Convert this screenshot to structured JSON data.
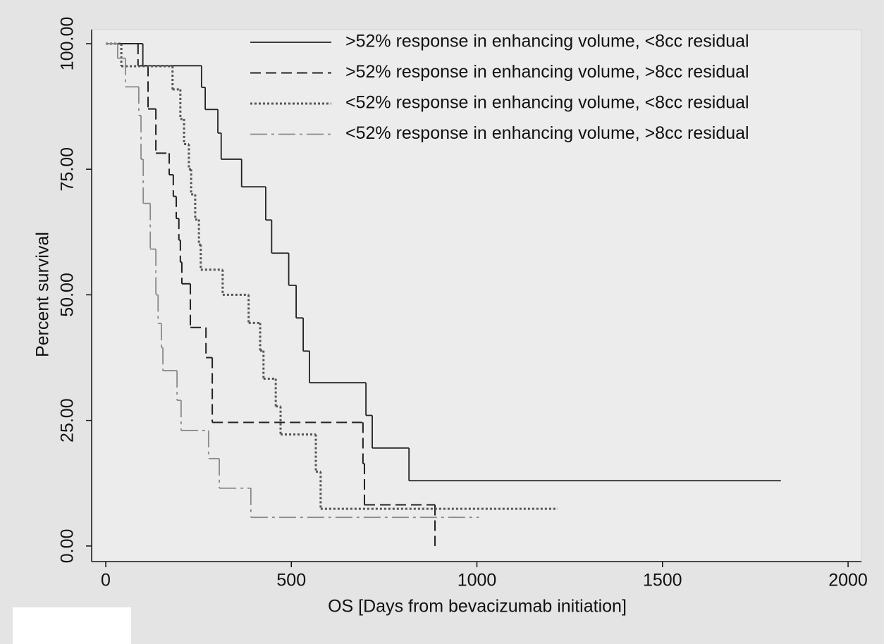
{
  "chart_data": {
    "type": "line",
    "step": "post",
    "xlabel": "OS [Days from bevacizumab initiation]",
    "ylabel": "Percent survival",
    "xlim": [
      -38,
      2036
    ],
    "xticks": [
      0,
      500,
      1000,
      1500,
      2000
    ],
    "ylim": [
      -3.1,
      102.8
    ],
    "yticks": [
      {
        "value": 0,
        "label": "0.00"
      },
      {
        "value": 25,
        "label": "25.00"
      },
      {
        "value": 50,
        "label": "50.00"
      },
      {
        "value": 75,
        "label": "75.00"
      },
      {
        "value": 100,
        "label": "100.00"
      }
    ],
    "legend": "upper right",
    "series": [
      {
        "name": ">52% response in enhancing volume, <8cc residual",
        "color": "#222222",
        "style": "solid",
        "x": [
          0,
          100,
          258,
          268,
          302,
          311,
          366,
          431,
          447,
          493,
          513,
          532,
          549,
          701,
          718,
          817,
          1819
        ],
        "values": [
          100,
          95.6,
          91.3,
          86.9,
          82.2,
          77.0,
          71.5,
          64.9,
          58.3,
          51.9,
          45.4,
          38.8,
          32.5,
          26,
          19.5,
          13,
          13
        ]
      },
      {
        "name": ">52% response in enhancing volume, >8cc residual",
        "color": "#222222",
        "style": "dashed",
        "x": [
          0,
          87,
          114,
          135,
          171,
          182,
          190,
          197,
          201,
          205,
          228,
          270,
          287,
          693,
          697,
          887
        ],
        "values": [
          100,
          95.6,
          87,
          78.2,
          73.9,
          69.6,
          65.2,
          60.9,
          56.5,
          52.2,
          43.5,
          37.5,
          24.6,
          16.4,
          8.2,
          0
        ]
      },
      {
        "name": "<52% response in enhancing volume, <8cc residual",
        "color": "#555555",
        "style": "dotted",
        "x": [
          0,
          42,
          180,
          201,
          211,
          224,
          230,
          241,
          251,
          256,
          315,
          385,
          416,
          425,
          458,
          471,
          566,
          579,
          1217
        ],
        "values": [
          100,
          95.5,
          90.9,
          85,
          80,
          75,
          70,
          65,
          60,
          55,
          50,
          44.4,
          38.9,
          33.3,
          27.8,
          22.2,
          14.8,
          7.4,
          7.4
        ]
      },
      {
        "name": "<52% response in enhancing volume, >8cc residual",
        "color": "#8a8a8a",
        "style": "dashdot",
        "x": [
          0,
          32,
          53,
          89,
          95,
          101,
          120,
          135,
          141,
          150,
          154,
          192,
          203,
          277,
          306,
          391,
          1005
        ],
        "values": [
          100,
          97.1,
          91.4,
          85.7,
          77,
          68.2,
          59.1,
          50,
          44.3,
          39.5,
          34.9,
          29,
          23,
          17.4,
          11.5,
          5.7,
          5.7
        ]
      }
    ]
  }
}
